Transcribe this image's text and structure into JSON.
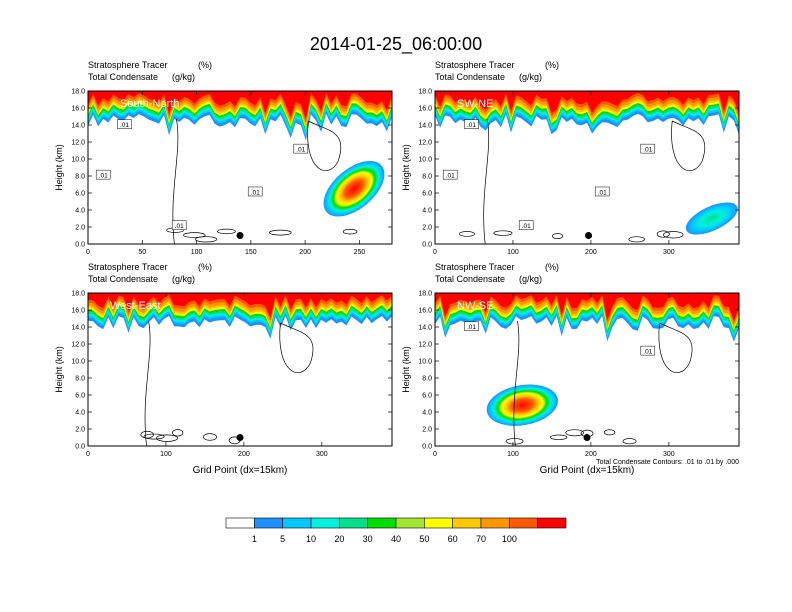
{
  "figure": {
    "title": "2014-01-25_06:00:00",
    "contour_note": "Total Condensate Contours: .01 to .01 by .000"
  },
  "colorbar": {
    "labels": [
      "1",
      "5",
      "10",
      "20",
      "30",
      "40",
      "50",
      "60",
      "70",
      "100"
    ],
    "colors": [
      "#ffffff",
      "#1e90ff",
      "#00c8ff",
      "#00f0e0",
      "#00e08c",
      "#00dc00",
      "#a0e632",
      "#ffff00",
      "#ffc800",
      "#ff9600",
      "#ff5a00",
      "#ff0000"
    ]
  },
  "chart_data": [
    {
      "type": "heatmap",
      "panel": "South-North",
      "subtitle_left": "Stratosphere Tracer",
      "subtitle_right": "(%)",
      "subtitle2_left": "Total Condensate",
      "subtitle2_right": "(g/kg)",
      "ylabel": "Height (km)",
      "xlabel": "",
      "xlim": [
        0,
        280
      ],
      "ylim": [
        0,
        18
      ],
      "xticks": [
        "0",
        "50",
        "100",
        "150",
        "200",
        "250"
      ],
      "yticks": [
        "0.0",
        "2.0",
        "4.0",
        "6.0",
        "8.0",
        "10.0",
        "12.0",
        "14.0",
        "16.0",
        "18.0"
      ],
      "contour_labels": [
        ".01",
        ".01",
        ".01",
        ".01",
        ".01"
      ],
      "tracer_base_km": 14.5,
      "marker": {
        "x": 140,
        "y": 1.0
      },
      "blob": {
        "x_center": 245,
        "y_center": 6.5,
        "peak_percent": 70
      }
    },
    {
      "type": "heatmap",
      "panel": "SW-NE",
      "subtitle_left": "Stratosphere Tracer",
      "subtitle_right": "(%)",
      "subtitle2_left": "Total Condensate",
      "subtitle2_right": "(g/kg)",
      "ylabel": "Height (km)",
      "xlabel": "",
      "xlim": [
        0,
        390
      ],
      "ylim": [
        0,
        18
      ],
      "xticks": [
        "0",
        "100",
        "200",
        "300"
      ],
      "yticks": [
        "0.0",
        "2.0",
        "4.0",
        "6.0",
        "8.0",
        "10.0",
        "12.0",
        "14.0",
        "16.0",
        "18.0"
      ],
      "contour_labels": [
        ".01",
        ".01",
        ".01",
        ".01",
        ".01"
      ],
      "tracer_base_km": 14.5,
      "marker": {
        "x": 197,
        "y": 1.0
      },
      "blob": {
        "x_center": 355,
        "y_center": 3.0,
        "peak_percent": 30
      }
    },
    {
      "type": "heatmap",
      "panel": "West-East",
      "subtitle_left": "Stratosphere Tracer",
      "subtitle_right": "(%)",
      "subtitle2_left": "Total Condensate",
      "subtitle2_right": "(g/kg)",
      "ylabel": "Height (km)",
      "xlabel": "Grid Point (dx=15km)",
      "xlim": [
        0,
        390
      ],
      "ylim": [
        0,
        18
      ],
      "xticks": [
        "0",
        "100",
        "200",
        "300"
      ],
      "yticks": [
        "0.0",
        "2.0",
        "4.0",
        "6.0",
        "8.0",
        "10.0",
        "12.0",
        "14.0",
        "16.0",
        "18.0"
      ],
      "contour_labels": [],
      "tracer_base_km": 14.5,
      "marker": {
        "x": 195,
        "y": 1.0
      },
      "blob": null
    },
    {
      "type": "heatmap",
      "panel": "NW-SE",
      "subtitle_left": "Stratosphere Tracer",
      "subtitle_right": "(%)",
      "subtitle2_left": "Total Condensate",
      "subtitle2_right": "(g/kg)",
      "ylabel": "Height (km)",
      "xlabel": "Grid Point (dx=15km)",
      "xlim": [
        0,
        390
      ],
      "ylim": [
        0,
        18
      ],
      "xticks": [
        "0",
        "100",
        "200",
        "300"
      ],
      "yticks": [
        "0.0",
        "2.0",
        "4.0",
        "6.0",
        "8.0",
        "10.0",
        "12.0",
        "14.0",
        "16.0",
        "18.0"
      ],
      "contour_labels": [
        ".01",
        ".01"
      ],
      "tracer_base_km": 14.5,
      "marker": {
        "x": 195,
        "y": 1.0
      },
      "blob": {
        "x_center": 112,
        "y_center": 4.8,
        "peak_percent": 70
      }
    }
  ]
}
